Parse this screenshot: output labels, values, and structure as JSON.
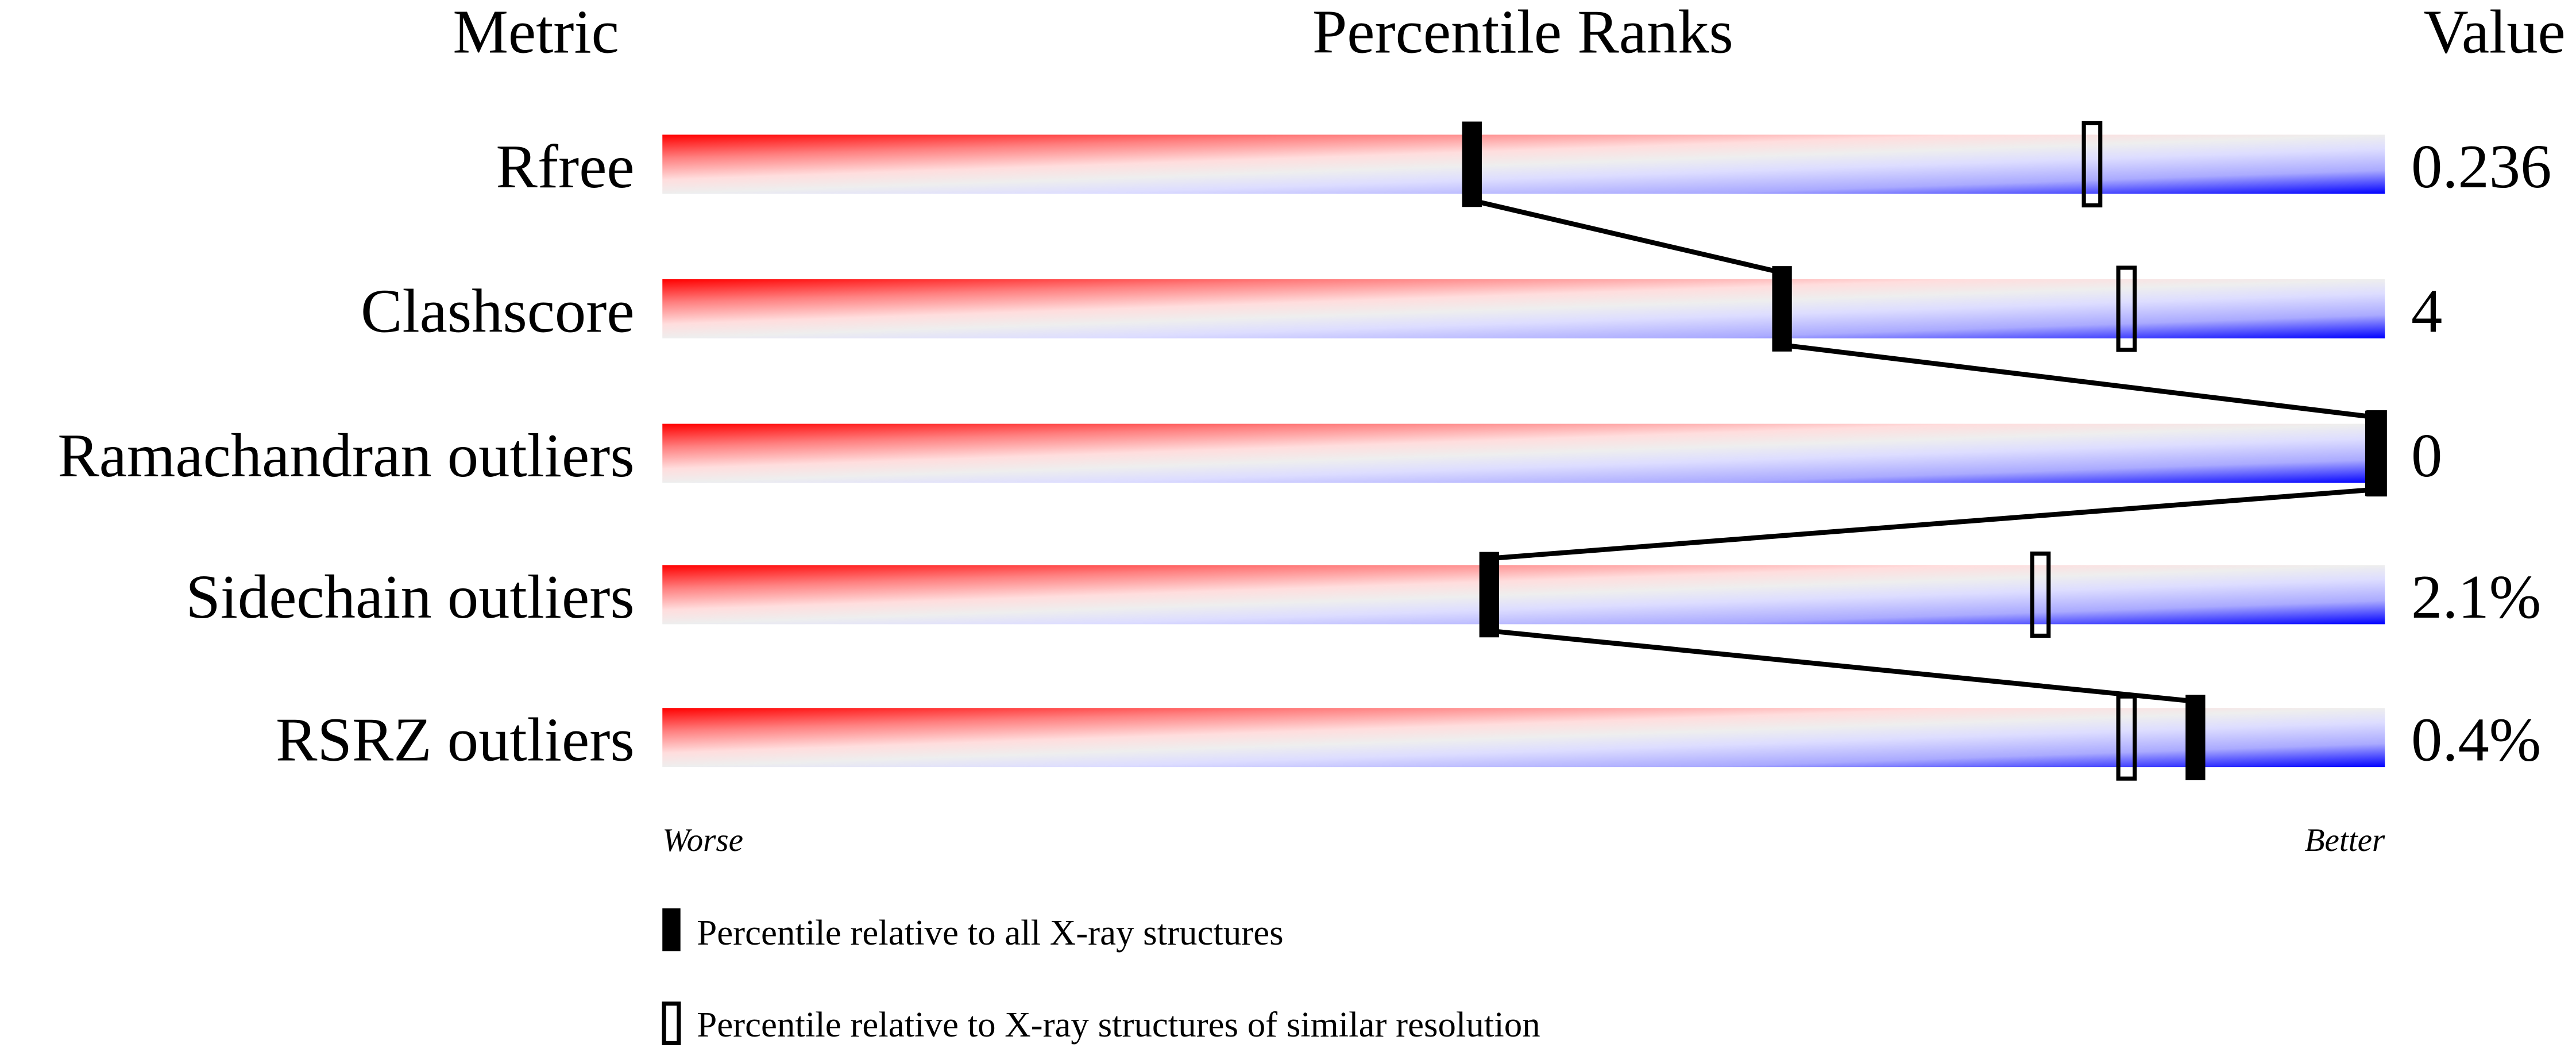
{
  "chart_data": {
    "type": "percentile-slider",
    "headers": {
      "metric": "Metric",
      "ranks": "Percentile Ranks",
      "value": "Value"
    },
    "xlim": [
      0,
      100
    ],
    "metrics": [
      {
        "label": "Rfree",
        "value": "0.236",
        "percentile_all": 47,
        "percentile_similar": 83
      },
      {
        "label": "Clashscore",
        "value": "4",
        "percentile_all": 65,
        "percentile_similar": 85
      },
      {
        "label": "Ramachandran outliers",
        "value": "0",
        "percentile_all": 100,
        "percentile_similar": 100
      },
      {
        "label": "Sidechain outliers",
        "value": "2.1%",
        "percentile_all": 48,
        "percentile_similar": 80
      },
      {
        "label": "RSRZ outliers",
        "value": "0.4%",
        "percentile_all": 89,
        "percentile_similar": 85
      }
    ],
    "axis_labels": {
      "left": "Worse",
      "right": "Better"
    },
    "legend": [
      {
        "marker": "filled",
        "label": "Percentile relative to all X-ray structures"
      },
      {
        "marker": "open",
        "label": "Percentile relative to X-ray structures of similar resolution"
      }
    ],
    "colors": {
      "worse": "#ff0000",
      "middle": "#eeeeee",
      "better": "#0000ff",
      "marker": "#000000"
    }
  }
}
